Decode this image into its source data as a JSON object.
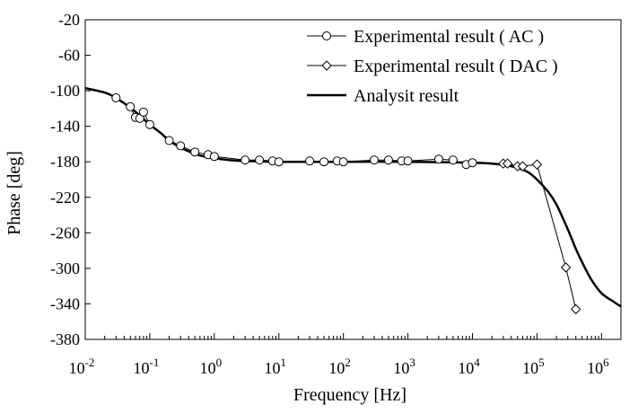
{
  "chart_data": {
    "type": "line",
    "title": "",
    "xlabel": "Frequency [Hz]",
    "ylabel": "Phase [deg]",
    "xscale": "log",
    "xlim": [
      0.01,
      2000000
    ],
    "ylim": [
      -380,
      -20
    ],
    "x_ticks": [
      {
        "value": 0.01,
        "base": "10",
        "exp": "-2"
      },
      {
        "value": 0.1,
        "base": "10",
        "exp": "-1"
      },
      {
        "value": 1,
        "base": "10",
        "exp": "0"
      },
      {
        "value": 10,
        "base": "10",
        "exp": "1"
      },
      {
        "value": 100,
        "base": "10",
        "exp": "2"
      },
      {
        "value": 1000,
        "base": "10",
        "exp": "3"
      },
      {
        "value": 10000,
        "base": "10",
        "exp": "4"
      },
      {
        "value": 100000,
        "base": "10",
        "exp": "5"
      },
      {
        "value": 1000000,
        "base": "10",
        "exp": "6"
      }
    ],
    "y_ticks": [
      -20,
      -60,
      -100,
      -140,
      -180,
      -220,
      -260,
      -300,
      -340,
      -380
    ],
    "grid": false,
    "legend_position": "top-right",
    "series": [
      {
        "name": "Experimental result ( AC )",
        "marker": "circle",
        "x": [
          0.03,
          0.05,
          0.06,
          0.07,
          0.08,
          0.1,
          0.2,
          0.3,
          0.5,
          0.8,
          1,
          3,
          5,
          8,
          10,
          30,
          50,
          80,
          100,
          300,
          500,
          800,
          1000,
          3000,
          5000,
          8000,
          10000
        ],
        "y": [
          -108,
          -118,
          -130,
          -131,
          -124,
          -138,
          -156,
          -162,
          -169,
          -172,
          -174,
          -178,
          -178,
          -179,
          -180,
          -179,
          -180,
          -179,
          -180,
          -178,
          -178,
          -179,
          -179,
          -177,
          -178,
          -183,
          -181
        ]
      },
      {
        "name": "Experimental result ( DAC )",
        "marker": "diamond",
        "x": [
          30000,
          35000,
          50000,
          60000,
          100000,
          280000,
          400000
        ],
        "y": [
          -182,
          -182,
          -185,
          -185,
          -183,
          -299,
          -346
        ]
      },
      {
        "name": "Analysit result",
        "marker": "none",
        "x": [
          0.01,
          0.02,
          0.03,
          0.05,
          0.07,
          0.1,
          0.15,
          0.2,
          0.3,
          0.5,
          0.7,
          1,
          2,
          5,
          10,
          100,
          1000,
          10000,
          20000,
          40000,
          70000,
          100000,
          150000,
          200000,
          300000,
          400000,
          500000,
          700000,
          1000000,
          1500000,
          2000000
        ],
        "y": [
          -97,
          -102,
          -108,
          -119,
          -128,
          -138,
          -148,
          -156,
          -164,
          -171,
          -174,
          -176,
          -178.5,
          -179.5,
          -180,
          -180,
          -180,
          -181,
          -182,
          -185,
          -191,
          -200,
          -214,
          -228,
          -256,
          -278,
          -293,
          -313,
          -328,
          -337,
          -343
        ]
      }
    ]
  }
}
